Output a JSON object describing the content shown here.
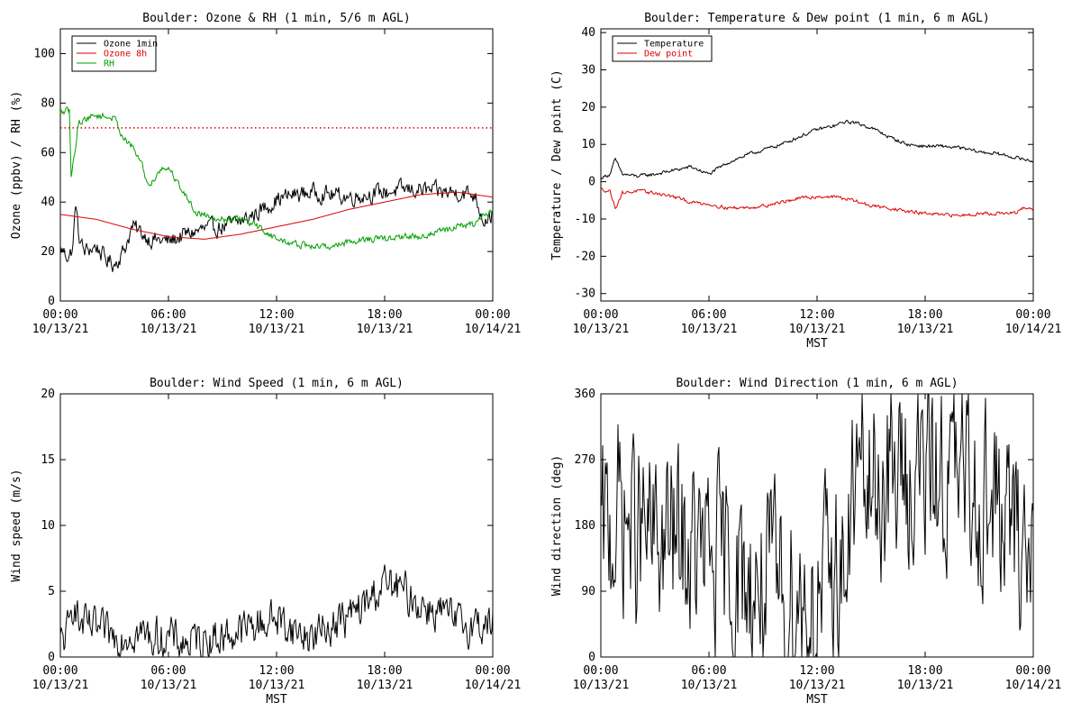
{
  "chart_data": [
    {
      "type": "line",
      "title": "Boulder: Ozone & RH (1 min, 5/6 m AGL)",
      "xlabel": "",
      "ylabel": "Ozone (ppbv) / RH (%)",
      "x_unit": "hours since 00:00 10/13/21",
      "xlim": [
        0,
        24
      ],
      "ylim": [
        0,
        110
      ],
      "yticks": [
        0,
        20,
        40,
        60,
        80,
        100
      ],
      "xtick_labels": [
        [
          "00:00",
          "10/13/21"
        ],
        [
          "06:00",
          "10/13/21"
        ],
        [
          "12:00",
          "10/13/21"
        ],
        [
          "18:00",
          "10/13/21"
        ],
        [
          "00:00",
          "10/14/21"
        ]
      ],
      "legend": {
        "position": "top-left",
        "entries": [
          "Ozone 1min",
          "Ozone 8h",
          "RH"
        ]
      },
      "annotations": [
        {
          "type": "hline",
          "y": 70,
          "style": "dotted",
          "color": "#dd0000"
        }
      ],
      "series": [
        {
          "name": "Ozone 1min",
          "color": "#000000",
          "noise": 3,
          "x": [
            0,
            0.5,
            0.7,
            0.85,
            1.0,
            1.3,
            2.0,
            2.5,
            3.0,
            3.5,
            4.0,
            5.0,
            6.0,
            7.0,
            8.0,
            9.0,
            10.0,
            11.0,
            12.0,
            13.0,
            14.0,
            15.0,
            16.0,
            17.0,
            18.0,
            19.0,
            20.0,
            21.0,
            22.0,
            23.0,
            23.5,
            24.0
          ],
          "y": [
            21,
            18,
            22,
            40,
            27,
            20,
            22,
            17,
            15,
            20,
            30,
            25,
            24,
            27,
            29,
            30,
            32,
            36,
            41,
            43,
            44,
            43,
            42,
            43,
            44,
            45,
            45,
            44,
            44,
            43,
            33,
            35
          ]
        },
        {
          "name": "Ozone 8h",
          "color": "#dd0000",
          "noise": 0,
          "x": [
            0,
            2,
            4,
            6,
            8,
            10,
            12,
            14,
            16,
            18,
            20,
            22,
            24
          ],
          "y": [
            35,
            33,
            29,
            26,
            25,
            27,
            30,
            33,
            37,
            40,
            43,
            44,
            42
          ]
        },
        {
          "name": "RH",
          "color": "#00a000",
          "noise": 1.2,
          "x": [
            0,
            0.5,
            0.6,
            0.8,
            1.0,
            1.5,
            2.0,
            3.0,
            3.5,
            4.0,
            4.5,
            4.8,
            5.0,
            5.5,
            6.0,
            6.5,
            7.0,
            7.5,
            8.0,
            9.0,
            10.0,
            11.0,
            12.0,
            13.0,
            14.0,
            15.0,
            16.0,
            17.0,
            18.0,
            19.0,
            20.0,
            21.0,
            22.0,
            23.0,
            23.5,
            24.0
          ],
          "y": [
            76,
            77,
            50,
            60,
            72,
            74,
            75,
            74,
            66,
            62,
            56,
            48,
            47,
            53,
            54,
            48,
            42,
            36,
            35,
            33,
            33,
            30,
            25,
            23,
            22,
            22,
            24,
            25,
            25,
            26,
            26,
            28,
            30,
            31,
            34,
            37
          ]
        }
      ]
    },
    {
      "type": "line",
      "title": "Boulder: Temperature & Dew point (1 min, 6 m AGL)",
      "xlabel": "MST",
      "ylabel": "Temperature / Dew point (C)",
      "x_unit": "hours since 00:00 10/13/21",
      "xlim": [
        0,
        24
      ],
      "ylim": [
        -32,
        41
      ],
      "yticks": [
        -30,
        -20,
        -10,
        0,
        10,
        20,
        30,
        40
      ],
      "xtick_labels": [
        [
          "00:00",
          "10/13/21"
        ],
        [
          "06:00",
          "10/13/21"
        ],
        [
          "12:00",
          "10/13/21"
        ],
        [
          "18:00",
          "10/13/21"
        ],
        [
          "00:00",
          "10/14/21"
        ]
      ],
      "legend": {
        "position": "top-left",
        "entries": [
          "Temperature",
          "Dew point"
        ]
      },
      "series": [
        {
          "name": "Temperature",
          "color": "#000000",
          "noise": 0.4,
          "x": [
            0,
            0.5,
            0.8,
            1.2,
            2.0,
            3.0,
            4.0,
            5.0,
            6.0,
            7.0,
            8.0,
            9.0,
            10.0,
            11.0,
            12.0,
            13.0,
            13.5,
            14.0,
            15.0,
            16.0,
            17.0,
            18.0,
            19.0,
            20.0,
            21.0,
            22.0,
            23.0,
            24.0
          ],
          "y": [
            1,
            2,
            6,
            2,
            1.5,
            2,
            3,
            4,
            2,
            5,
            7,
            8.5,
            10,
            12,
            14,
            15,
            16,
            16,
            14.5,
            12,
            10,
            9.5,
            9.5,
            9,
            8,
            7.5,
            6.5,
            5.5
          ]
        },
        {
          "name": "Dew point",
          "color": "#dd0000",
          "noise": 0.4,
          "x": [
            0,
            0.5,
            0.8,
            1.2,
            2.0,
            3.0,
            4.0,
            5.0,
            6.0,
            7.0,
            8.0,
            9.0,
            10.0,
            11.0,
            12.0,
            13.0,
            14.0,
            15.0,
            16.0,
            17.0,
            18.0,
            19.0,
            20.0,
            21.0,
            22.0,
            23.0,
            23.5,
            24.0
          ],
          "y": [
            -2,
            -2.5,
            -7,
            -3,
            -2.5,
            -3,
            -4,
            -5.5,
            -6,
            -7,
            -7,
            -6.5,
            -5.5,
            -4.5,
            -4,
            -4,
            -5,
            -6.5,
            -7,
            -8,
            -8.5,
            -9,
            -9,
            -8.5,
            -8.5,
            -8.5,
            -7,
            -7.5
          ]
        }
      ]
    },
    {
      "type": "line",
      "title": "Boulder: Wind Speed (1 min, 6 m AGL)",
      "xlabel": "MST",
      "ylabel": "Wind speed (m/s)",
      "x_unit": "hours since 00:00 10/13/21",
      "xlim": [
        0,
        24
      ],
      "ylim": [
        0,
        20
      ],
      "yticks": [
        0,
        5,
        10,
        15,
        20
      ],
      "xtick_labels": [
        [
          "00:00",
          "10/13/21"
        ],
        [
          "06:00",
          "10/13/21"
        ],
        [
          "12:00",
          "10/13/21"
        ],
        [
          "18:00",
          "10/13/21"
        ],
        [
          "00:00",
          "10/14/21"
        ]
      ],
      "series": [
        {
          "color": "#000000",
          "noise": 1.3,
          "x": [
            0,
            0.5,
            0.8,
            1.0,
            2.0,
            3.0,
            4.0,
            5.0,
            6.0,
            7.0,
            8.0,
            9.0,
            10.0,
            11.0,
            12.0,
            13.0,
            14.0,
            15.0,
            16.0,
            17.0,
            17.5,
            18.0,
            19.0,
            20.0,
            21.0,
            22.0,
            23.0,
            24.0
          ],
          "y": [
            1,
            2,
            5,
            2.5,
            2,
            1.5,
            2,
            1.5,
            1.5,
            1,
            1.5,
            1.5,
            2,
            2.5,
            3,
            2,
            1.5,
            2.5,
            3,
            4,
            5,
            5.5,
            5,
            4,
            3.5,
            2.5,
            2.5,
            2.5
          ]
        }
      ]
    },
    {
      "type": "line",
      "title": "Boulder: Wind Direction (1 min, 6 m AGL)",
      "xlabel": "MST",
      "ylabel": "Wind direction (deg)",
      "x_unit": "hours since 00:00 10/13/21",
      "xlim": [
        0,
        24
      ],
      "ylim": [
        0,
        360
      ],
      "yticks": [
        0,
        90,
        180,
        270,
        360
      ],
      "xtick_labels": [
        [
          "00:00",
          "10/13/21"
        ],
        [
          "06:00",
          "10/13/21"
        ],
        [
          "12:00",
          "10/13/21"
        ],
        [
          "18:00",
          "10/13/21"
        ],
        [
          "00:00",
          "10/14/21"
        ]
      ],
      "series": [
        {
          "color": "#000000",
          "noise": 110,
          "x": [
            0,
            1.0,
            2.0,
            3.0,
            4.0,
            5.0,
            6.0,
            7.0,
            8.0,
            9.0,
            10.0,
            11.0,
            12.0,
            13.0,
            13.8,
            14.0,
            15.0,
            16.0,
            17.0,
            18.0,
            19.0,
            20.0,
            21.0,
            22.0,
            23.0,
            24.0
          ],
          "y": [
            150,
            200,
            170,
            150,
            160,
            140,
            130,
            120,
            100,
            100,
            90,
            80,
            70,
            120,
            130,
            250,
            225,
            240,
            250,
            255,
            250,
            240,
            230,
            200,
            160,
            150
          ]
        }
      ]
    }
  ]
}
